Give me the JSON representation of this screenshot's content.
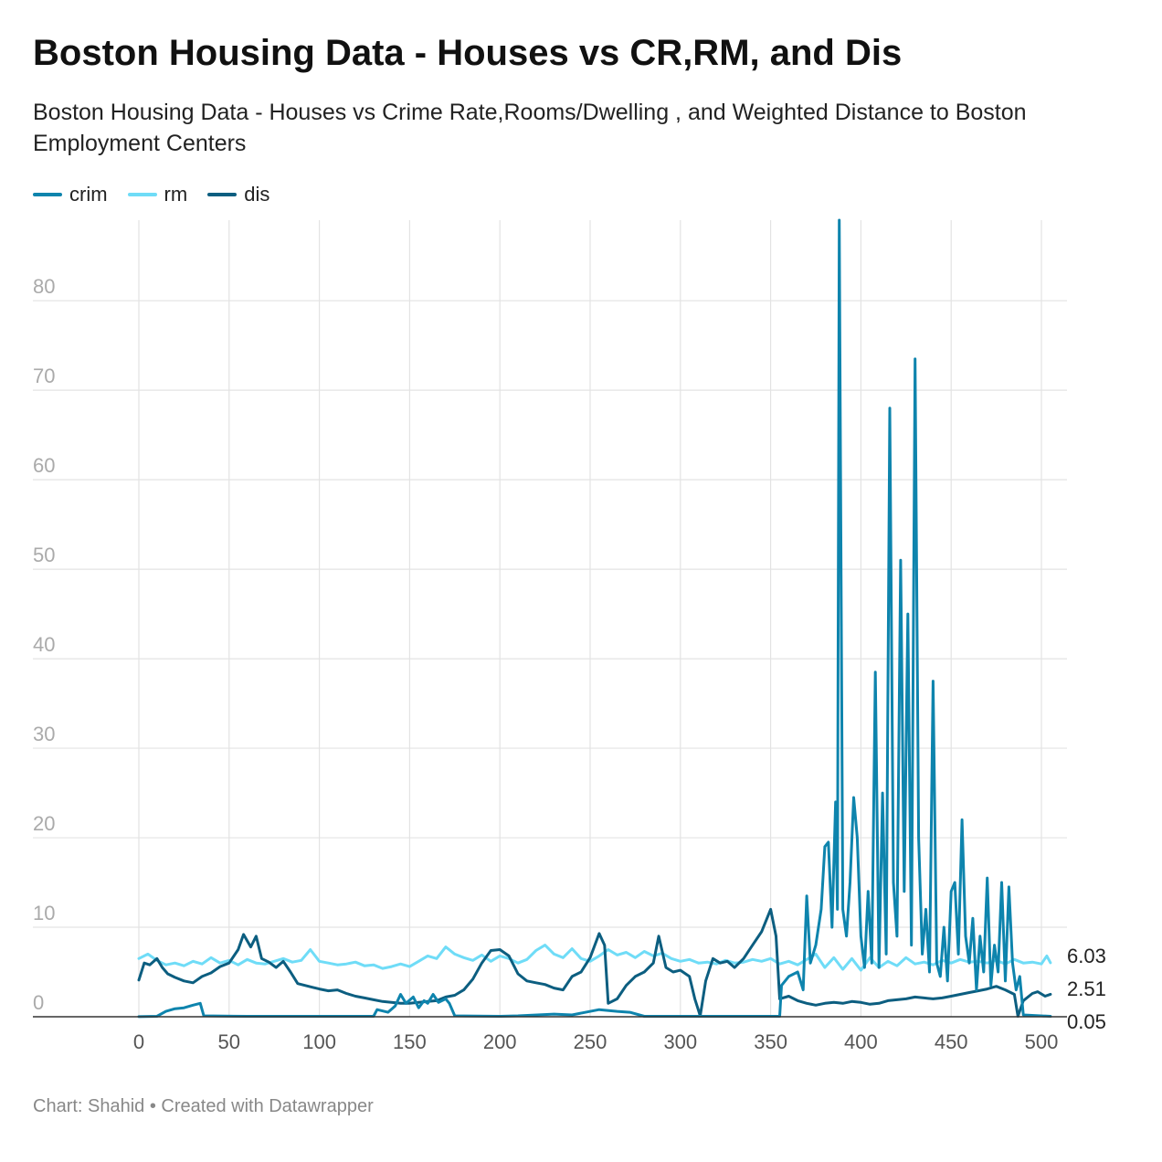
{
  "header": {
    "title": "Boston Housing Data - Houses vs CR,RM, and Dis",
    "subtitle": "Boston Housing Data - Houses vs Crime Rate,Rooms/Dwelling , and Weighted Distance to Boston Employment Centers"
  },
  "footer": {
    "source": "Chart: Shahid • Created with Datawrapper"
  },
  "colors": {
    "crim": "#0e84ad",
    "rm": "#6fdcf7",
    "dis": "#0c5e80",
    "grid": "#e3e3e3",
    "axis": "#333333",
    "tick": "#aaaaaa"
  },
  "chart_data": {
    "type": "line",
    "x_ticks": [
      0,
      50,
      100,
      150,
      200,
      250,
      300,
      350,
      400,
      450,
      500
    ],
    "y_ticks": [
      0,
      10,
      20,
      30,
      40,
      50,
      60,
      70,
      80
    ],
    "xlim": [
      0,
      515
    ],
    "ylim": [
      0,
      89
    ],
    "grid": true,
    "legend_position": "top-left",
    "end_labels": [
      "6.03",
      "2.51",
      "0.05"
    ],
    "series": [
      {
        "name": "crim",
        "points": [
          [
            0,
            0.01
          ],
          [
            10,
            0.05
          ],
          [
            15,
            0.6
          ],
          [
            20,
            0.9
          ],
          [
            25,
            1.0
          ],
          [
            30,
            1.3
          ],
          [
            34,
            1.5
          ],
          [
            36,
            0.1
          ],
          [
            60,
            0.05
          ],
          [
            100,
            0.05
          ],
          [
            130,
            0.05
          ],
          [
            132,
            0.8
          ],
          [
            138,
            0.5
          ],
          [
            142,
            1.2
          ],
          [
            145,
            2.5
          ],
          [
            148,
            1.5
          ],
          [
            152,
            2.2
          ],
          [
            155,
            1.0
          ],
          [
            158,
            1.8
          ],
          [
            160,
            1.5
          ],
          [
            163,
            2.5
          ],
          [
            166,
            1.6
          ],
          [
            170,
            2.0
          ],
          [
            172,
            1.5
          ],
          [
            175,
            0.1
          ],
          [
            200,
            0.05
          ],
          [
            210,
            0.1
          ],
          [
            230,
            0.3
          ],
          [
            240,
            0.2
          ],
          [
            255,
            0.8
          ],
          [
            265,
            0.6
          ],
          [
            272,
            0.5
          ],
          [
            280,
            0.05
          ],
          [
            300,
            0.05
          ],
          [
            315,
            0.05
          ],
          [
            330,
            0.05
          ],
          [
            355,
            0.05
          ],
          [
            356,
            3.5
          ],
          [
            360,
            4.5
          ],
          [
            365,
            5.0
          ],
          [
            368,
            3.0
          ],
          [
            370,
            13.5
          ],
          [
            372,
            6.0
          ],
          [
            375,
            8.0
          ],
          [
            378,
            12.0
          ],
          [
            380,
            19.0
          ],
          [
            382,
            19.5
          ],
          [
            384,
            10.0
          ],
          [
            386,
            24.0
          ],
          [
            387,
            12.0
          ],
          [
            388,
            89.0
          ],
          [
            390,
            12.0
          ],
          [
            392,
            9.0
          ],
          [
            394,
            15.0
          ],
          [
            396,
            24.5
          ],
          [
            398,
            20.0
          ],
          [
            400,
            9.0
          ],
          [
            402,
            5.5
          ],
          [
            404,
            14.0
          ],
          [
            406,
            6.0
          ],
          [
            408,
            38.5
          ],
          [
            410,
            5.5
          ],
          [
            412,
            25.0
          ],
          [
            414,
            7.0
          ],
          [
            416,
            68.0
          ],
          [
            418,
            15.0
          ],
          [
            420,
            9.0
          ],
          [
            422,
            51.0
          ],
          [
            424,
            14.0
          ],
          [
            426,
            45.0
          ],
          [
            428,
            8.0
          ],
          [
            430,
            73.5
          ],
          [
            432,
            20.0
          ],
          [
            434,
            7.0
          ],
          [
            436,
            12.0
          ],
          [
            438,
            5.0
          ],
          [
            440,
            37.5
          ],
          [
            442,
            6.0
          ],
          [
            444,
            4.5
          ],
          [
            446,
            10.0
          ],
          [
            448,
            4.0
          ],
          [
            450,
            14.0
          ],
          [
            452,
            15.0
          ],
          [
            454,
            7.0
          ],
          [
            456,
            22.0
          ],
          [
            458,
            9.0
          ],
          [
            460,
            6.0
          ],
          [
            462,
            11.0
          ],
          [
            464,
            3.0
          ],
          [
            466,
            9.0
          ],
          [
            468,
            5.0
          ],
          [
            470,
            15.5
          ],
          [
            472,
            3.5
          ],
          [
            474,
            8.0
          ],
          [
            476,
            5.0
          ],
          [
            478,
            15.0
          ],
          [
            480,
            4.0
          ],
          [
            482,
            14.5
          ],
          [
            484,
            6.0
          ],
          [
            486,
            3.0
          ],
          [
            488,
            4.5
          ],
          [
            490,
            0.2
          ],
          [
            505,
            0.05
          ]
        ]
      },
      {
        "name": "rm",
        "points": [
          [
            0,
            6.5
          ],
          [
            5,
            7.0
          ],
          [
            10,
            6.3
          ],
          [
            15,
            5.8
          ],
          [
            20,
            6.0
          ],
          [
            25,
            5.7
          ],
          [
            30,
            6.2
          ],
          [
            35,
            5.9
          ],
          [
            40,
            6.6
          ],
          [
            45,
            6.0
          ],
          [
            50,
            6.3
          ],
          [
            55,
            5.8
          ],
          [
            60,
            6.4
          ],
          [
            65,
            6.0
          ],
          [
            70,
            5.9
          ],
          [
            75,
            6.2
          ],
          [
            80,
            6.5
          ],
          [
            85,
            6.1
          ],
          [
            90,
            6.3
          ],
          [
            95,
            7.5
          ],
          [
            100,
            6.2
          ],
          [
            105,
            6.0
          ],
          [
            110,
            5.8
          ],
          [
            115,
            5.9
          ],
          [
            120,
            6.1
          ],
          [
            125,
            5.7
          ],
          [
            130,
            5.8
          ],
          [
            135,
            5.4
          ],
          [
            140,
            5.6
          ],
          [
            145,
            5.9
          ],
          [
            150,
            5.6
          ],
          [
            155,
            6.2
          ],
          [
            160,
            6.8
          ],
          [
            165,
            6.5
          ],
          [
            170,
            7.8
          ],
          [
            175,
            7.0
          ],
          [
            180,
            6.6
          ],
          [
            185,
            6.3
          ],
          [
            190,
            6.9
          ],
          [
            195,
            6.2
          ],
          [
            200,
            6.8
          ],
          [
            205,
            6.5
          ],
          [
            210,
            6.0
          ],
          [
            215,
            6.4
          ],
          [
            220,
            7.4
          ],
          [
            225,
            8.0
          ],
          [
            230,
            7.0
          ],
          [
            235,
            6.6
          ],
          [
            240,
            7.6
          ],
          [
            245,
            6.5
          ],
          [
            250,
            6.2
          ],
          [
            255,
            6.8
          ],
          [
            260,
            7.5
          ],
          [
            265,
            6.9
          ],
          [
            270,
            7.2
          ],
          [
            275,
            6.6
          ],
          [
            280,
            7.3
          ],
          [
            285,
            6.8
          ],
          [
            290,
            7.1
          ],
          [
            295,
            6.5
          ],
          [
            300,
            6.2
          ],
          [
            305,
            6.4
          ],
          [
            310,
            6.0
          ],
          [
            315,
            6.1
          ],
          [
            320,
            5.9
          ],
          [
            325,
            6.3
          ],
          [
            330,
            6.0
          ],
          [
            335,
            6.1
          ],
          [
            340,
            6.4
          ],
          [
            345,
            6.2
          ],
          [
            350,
            6.5
          ],
          [
            355,
            5.9
          ],
          [
            360,
            6.2
          ],
          [
            365,
            5.8
          ],
          [
            370,
            6.4
          ],
          [
            375,
            7.0
          ],
          [
            380,
            5.5
          ],
          [
            385,
            6.6
          ],
          [
            390,
            5.3
          ],
          [
            395,
            6.5
          ],
          [
            400,
            5.2
          ],
          [
            405,
            6.6
          ],
          [
            410,
            5.5
          ],
          [
            415,
            6.2
          ],
          [
            420,
            5.7
          ],
          [
            425,
            6.6
          ],
          [
            430,
            5.9
          ],
          [
            435,
            6.1
          ],
          [
            440,
            5.8
          ],
          [
            445,
            6.3
          ],
          [
            450,
            6.0
          ],
          [
            455,
            6.4
          ],
          [
            460,
            6.1
          ],
          [
            465,
            6.2
          ],
          [
            470,
            6.0
          ],
          [
            475,
            6.3
          ],
          [
            480,
            5.9
          ],
          [
            485,
            6.4
          ],
          [
            490,
            6.0
          ],
          [
            495,
            6.1
          ],
          [
            500,
            5.9
          ],
          [
            503,
            6.8
          ],
          [
            505,
            6.03
          ]
        ]
      },
      {
        "name": "dis",
        "points": [
          [
            0,
            4.1
          ],
          [
            3,
            6.0
          ],
          [
            6,
            5.8
          ],
          [
            10,
            6.5
          ],
          [
            13,
            5.5
          ],
          [
            16,
            4.8
          ],
          [
            20,
            4.4
          ],
          [
            25,
            4.0
          ],
          [
            30,
            3.8
          ],
          [
            35,
            4.5
          ],
          [
            40,
            4.9
          ],
          [
            45,
            5.6
          ],
          [
            50,
            6.0
          ],
          [
            55,
            7.5
          ],
          [
            58,
            9.2
          ],
          [
            62,
            7.8
          ],
          [
            65,
            9.0
          ],
          [
            68,
            6.5
          ],
          [
            72,
            6.1
          ],
          [
            76,
            5.5
          ],
          [
            80,
            6.2
          ],
          [
            84,
            5.0
          ],
          [
            88,
            3.7
          ],
          [
            92,
            3.5
          ],
          [
            96,
            3.3
          ],
          [
            100,
            3.1
          ],
          [
            105,
            2.9
          ],
          [
            110,
            3.0
          ],
          [
            115,
            2.6
          ],
          [
            120,
            2.3
          ],
          [
            125,
            2.1
          ],
          [
            130,
            1.9
          ],
          [
            135,
            1.7
          ],
          [
            140,
            1.6
          ],
          [
            145,
            1.5
          ],
          [
            150,
            1.5
          ],
          [
            155,
            1.6
          ],
          [
            160,
            1.7
          ],
          [
            165,
            1.8
          ],
          [
            170,
            2.2
          ],
          [
            175,
            2.4
          ],
          [
            180,
            3.0
          ],
          [
            185,
            4.2
          ],
          [
            190,
            6.0
          ],
          [
            195,
            7.4
          ],
          [
            200,
            7.5
          ],
          [
            205,
            6.8
          ],
          [
            210,
            4.8
          ],
          [
            215,
            4.0
          ],
          [
            220,
            3.8
          ],
          [
            225,
            3.6
          ],
          [
            230,
            3.2
          ],
          [
            235,
            3.0
          ],
          [
            240,
            4.5
          ],
          [
            245,
            5.0
          ],
          [
            250,
            6.6
          ],
          [
            255,
            9.3
          ],
          [
            258,
            8.0
          ],
          [
            260,
            1.5
          ],
          [
            265,
            2.0
          ],
          [
            270,
            3.5
          ],
          [
            275,
            4.5
          ],
          [
            280,
            5.0
          ],
          [
            285,
            6.0
          ],
          [
            288,
            9.0
          ],
          [
            292,
            5.5
          ],
          [
            296,
            5.0
          ],
          [
            300,
            5.2
          ],
          [
            305,
            4.5
          ],
          [
            308,
            2.0
          ],
          [
            311,
            0.1
          ],
          [
            314,
            4.0
          ],
          [
            318,
            6.5
          ],
          [
            322,
            6.0
          ],
          [
            326,
            6.2
          ],
          [
            330,
            5.5
          ],
          [
            335,
            6.5
          ],
          [
            340,
            8.0
          ],
          [
            345,
            9.5
          ],
          [
            350,
            12.0
          ],
          [
            353,
            9.0
          ],
          [
            355,
            2.0
          ],
          [
            360,
            2.3
          ],
          [
            365,
            1.8
          ],
          [
            370,
            1.5
          ],
          [
            375,
            1.3
          ],
          [
            380,
            1.5
          ],
          [
            385,
            1.6
          ],
          [
            390,
            1.5
          ],
          [
            395,
            1.7
          ],
          [
            400,
            1.6
          ],
          [
            405,
            1.4
          ],
          [
            410,
            1.5
          ],
          [
            415,
            1.8
          ],
          [
            420,
            1.9
          ],
          [
            425,
            2.0
          ],
          [
            430,
            2.2
          ],
          [
            435,
            2.1
          ],
          [
            440,
            2.0
          ],
          [
            445,
            2.1
          ],
          [
            450,
            2.3
          ],
          [
            455,
            2.5
          ],
          [
            460,
            2.7
          ],
          [
            465,
            2.9
          ],
          [
            470,
            3.1
          ],
          [
            475,
            3.4
          ],
          [
            480,
            3.0
          ],
          [
            485,
            2.5
          ],
          [
            487,
            0.05
          ],
          [
            490,
            1.8
          ],
          [
            495,
            2.6
          ],
          [
            498,
            2.8
          ],
          [
            502,
            2.3
          ],
          [
            505,
            2.51
          ]
        ]
      }
    ]
  }
}
